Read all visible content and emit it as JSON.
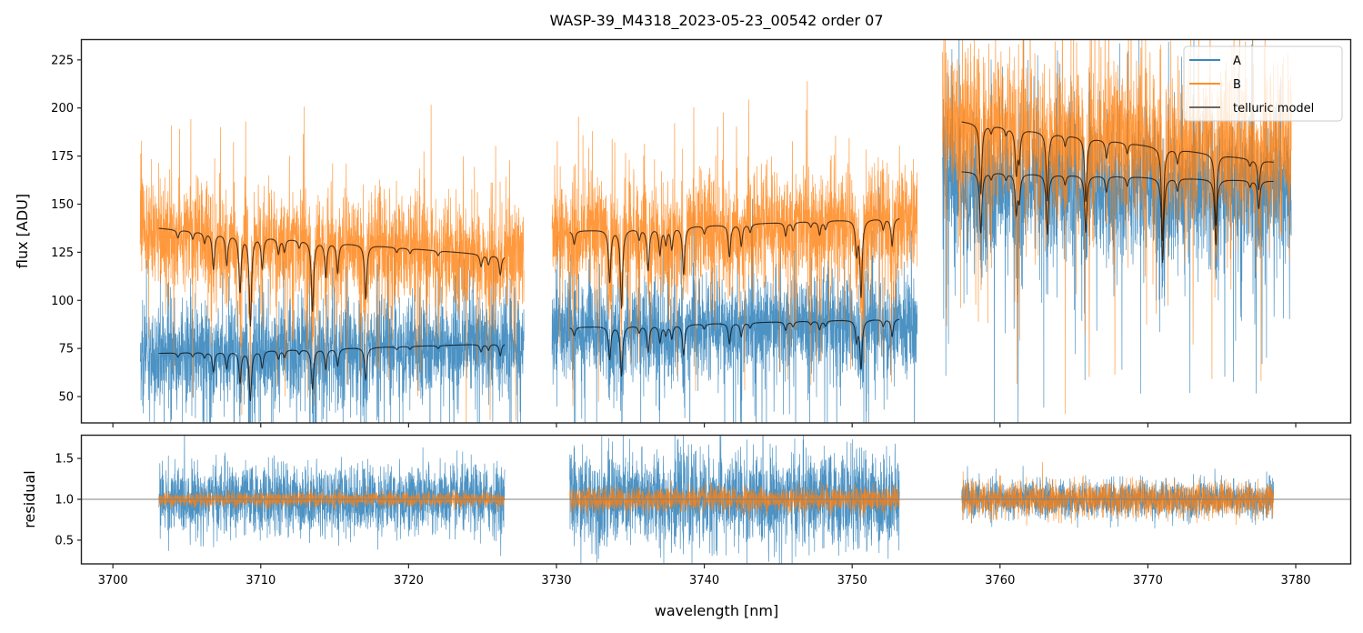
{
  "chart_data": [
    {
      "panel": "flux",
      "type": "line",
      "title": "WASP-39_M4318_2023-05-23_00542  order 07",
      "xlabel": "",
      "ylabel": "flux [ADU]",
      "xlim": [
        3697.9,
        3783.75
      ],
      "ylim": [
        36.3,
        235.8
      ],
      "yticks": [
        50,
        75,
        100,
        125,
        150,
        175,
        200,
        225
      ],
      "ytick_labels": [
        "50",
        "75",
        "100",
        "125",
        "150",
        "175",
        "200",
        "225"
      ],
      "xticks": [
        3700,
        3710,
        3720,
        3730,
        3740,
        3750,
        3760,
        3770,
        3780
      ],
      "xtick_labels_shown": false,
      "grid": false,
      "legend": {
        "placement": "top-right",
        "entries": [
          {
            "label": "A",
            "color": "#1f77b4"
          },
          {
            "label": "B",
            "color": "#ff7f0e"
          },
          {
            "label": "telluric model",
            "color": "#555555"
          }
        ]
      },
      "segments": [
        {
          "data_range": [
            3701.85,
            3727.8
          ],
          "model_range": [
            3703.1,
            3726.5
          ],
          "A": {
            "level_start": 73,
            "level_end": 78,
            "noise": 22
          },
          "B": {
            "level_start": 137,
            "level_end": 122,
            "noise": 24
          },
          "model_A": {
            "level_start": 72.5,
            "level_end": 77.5
          },
          "model_B": {
            "level_start": 137.5,
            "level_end": 123
          },
          "telluric_lines": [
            {
              "x": 3704.4,
              "depth": 0.03
            },
            {
              "x": 3705.4,
              "depth": 0.03
            },
            {
              "x": 3706.2,
              "depth": 0.04
            },
            {
              "x": 3706.8,
              "depth": 0.14
            },
            {
              "x": 3707.7,
              "depth": 0.12
            },
            {
              "x": 3708.6,
              "depth": 0.22
            },
            {
              "x": 3709.3,
              "depth": 0.35
            },
            {
              "x": 3710.1,
              "depth": 0.12
            },
            {
              "x": 3711.2,
              "depth": 0.06
            },
            {
              "x": 3711.6,
              "depth": 0.05
            },
            {
              "x": 3712.6,
              "depth": 0.03
            },
            {
              "x": 3713.5,
              "depth": 0.28
            },
            {
              "x": 3714.4,
              "depth": 0.14
            },
            {
              "x": 3715.2,
              "depth": 0.12
            },
            {
              "x": 3717.1,
              "depth": 0.22
            },
            {
              "x": 3719.2,
              "depth": 0.02
            },
            {
              "x": 3720.1,
              "depth": 0.02
            },
            {
              "x": 3722.0,
              "depth": 0.02
            },
            {
              "x": 3724.9,
              "depth": 0.05
            },
            {
              "x": 3725.4,
              "depth": 0.04
            },
            {
              "x": 3726.2,
              "depth": 0.08
            }
          ]
        },
        {
          "data_range": [
            3729.7,
            3754.4
          ],
          "model_range": [
            3730.9,
            3753.2
          ],
          "A": {
            "level_start": 85,
            "level_end": 90,
            "noise": 22
          },
          "B": {
            "level_start": 135,
            "level_end": 142,
            "noise": 25
          },
          "model_A": {
            "level_start": 86,
            "level_end": 90.5
          },
          "model_B": {
            "level_start": 136,
            "level_end": 143
          },
          "telluric_lines": [
            {
              "x": 3731.2,
              "depth": 0.05
            },
            {
              "x": 3733.6,
              "depth": 0.2
            },
            {
              "x": 3734.4,
              "depth": 0.3
            },
            {
              "x": 3735.6,
              "depth": 0.04
            },
            {
              "x": 3736.2,
              "depth": 0.16
            },
            {
              "x": 3737.0,
              "depth": 0.1
            },
            {
              "x": 3737.4,
              "depth": 0.06
            },
            {
              "x": 3737.8,
              "depth": 0.08
            },
            {
              "x": 3738.6,
              "depth": 0.18
            },
            {
              "x": 3740.0,
              "depth": 0.03
            },
            {
              "x": 3741.7,
              "depth": 0.12
            },
            {
              "x": 3742.5,
              "depth": 0.08
            },
            {
              "x": 3743.1,
              "depth": 0.03
            },
            {
              "x": 3745.5,
              "depth": 0.05
            },
            {
              "x": 3746.0,
              "depth": 0.03
            },
            {
              "x": 3747.2,
              "depth": 0.02
            },
            {
              "x": 3747.8,
              "depth": 0.05
            },
            {
              "x": 3748.2,
              "depth": 0.03
            },
            {
              "x": 3750.3,
              "depth": 0.12
            },
            {
              "x": 3750.6,
              "depth": 0.28
            },
            {
              "x": 3752.1,
              "depth": 0.04
            },
            {
              "x": 3752.7,
              "depth": 0.1
            }
          ]
        },
        {
          "data_range": [
            3756.1,
            3779.7
          ],
          "model_range": [
            3757.4,
            3778.5
          ],
          "A": {
            "level_start": 162,
            "level_end": 158,
            "noise": 32
          },
          "B": {
            "level_start": 192,
            "level_end": 178,
            "noise": 35
          },
          "model_A": {
            "level_start": 167,
            "level_end": 162
          },
          "model_B": {
            "level_start": 193,
            "level_end": 172
          },
          "telluric_lines": [
            {
              "x": 3758.7,
              "depth": 0.19
            },
            {
              "x": 3759.4,
              "depth": 0.02
            },
            {
              "x": 3760.4,
              "depth": 0.02
            },
            {
              "x": 3761.1,
              "depth": 0.12
            },
            {
              "x": 3761.3,
              "depth": 0.08
            },
            {
              "x": 3763.2,
              "depth": 0.19
            },
            {
              "x": 3764.4,
              "depth": 0.03
            },
            {
              "x": 3765.8,
              "depth": 0.18
            },
            {
              "x": 3767.2,
              "depth": 0.05
            },
            {
              "x": 3768.6,
              "depth": 0.03
            },
            {
              "x": 3771.0,
              "depth": 0.27
            },
            {
              "x": 3772.0,
              "depth": 0.04
            },
            {
              "x": 3774.6,
              "depth": 0.21
            },
            {
              "x": 3776.9,
              "depth": 0.02
            },
            {
              "x": 3777.5,
              "depth": 0.09
            }
          ]
        }
      ]
    },
    {
      "panel": "residual",
      "type": "line",
      "xlabel": "wavelength [nm]",
      "ylabel": "residual",
      "xlim": [
        3697.9,
        3783.75
      ],
      "ylim": [
        0.21,
        1.79
      ],
      "yticks": [
        0.5,
        1.0,
        1.5
      ],
      "ytick_labels": [
        "0.5",
        "1.0",
        "1.5"
      ],
      "xticks": [
        3700,
        3710,
        3720,
        3730,
        3740,
        3750,
        3760,
        3770,
        3780
      ],
      "xtick_labels": [
        "3700",
        "3710",
        "3720",
        "3730",
        "3740",
        "3750",
        "3760",
        "3770",
        "3780"
      ],
      "reference_line": 1.0,
      "grid": false,
      "segments": [
        {
          "range": [
            3703.1,
            3726.5
          ],
          "A_spread": 0.55,
          "B_spread": 0.12
        },
        {
          "range": [
            3730.9,
            3753.2
          ],
          "A_spread": 0.75,
          "B_spread": 0.2
        },
        {
          "range": [
            3757.4,
            3778.5
          ],
          "A_spread": 0.3,
          "B_spread": 0.28
        }
      ]
    }
  ],
  "colors": {
    "A": "#1f77b4",
    "B": "#ff7f0e",
    "model": "#000000",
    "reference": "#808080"
  }
}
